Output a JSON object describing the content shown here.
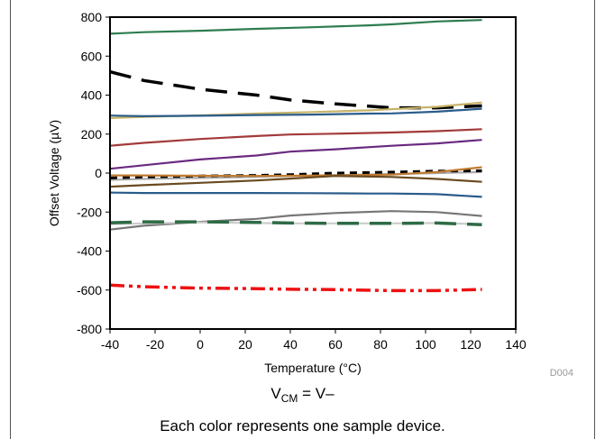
{
  "chart_data": {
    "type": "line",
    "xlabel": "Temperature (°C)",
    "ylabel": "Offset Voltage (µV)",
    "xlim": [
      -40,
      140
    ],
    "ylim": [
      -800,
      800
    ],
    "xticks": [
      "-40",
      "-20",
      "0",
      "20",
      "40",
      "60",
      "80",
      "100",
      "120",
      "140"
    ],
    "yticks": [
      "800",
      "600",
      "400",
      "200",
      "0",
      "-200",
      "-400",
      "-600",
      "-800"
    ],
    "grid": false,
    "legend": "none",
    "figure_id": "D004",
    "series": [
      {
        "color": "#2e7d4f",
        "dash": "solid",
        "x": [
          -40,
          -25,
          0,
          25,
          50,
          75,
          85,
          105,
          125
        ],
        "y": [
          715,
          723,
          730,
          740,
          748,
          758,
          763,
          778,
          785
        ]
      },
      {
        "color": "#000000",
        "dash": "long",
        "x": [
          -40,
          -25,
          0,
          25,
          40,
          60,
          85,
          105,
          125
        ],
        "y": [
          520,
          475,
          430,
          400,
          375,
          355,
          335,
          335,
          345
        ]
      },
      {
        "color": "#c8b46a",
        "dash": "solid",
        "x": [
          -40,
          -25,
          0,
          25,
          50,
          75,
          85,
          105,
          125
        ],
        "y": [
          282,
          288,
          296,
          305,
          313,
          322,
          328,
          340,
          362
        ]
      },
      {
        "color": "#2a5c8a",
        "dash": "solid",
        "x": [
          -40,
          -25,
          0,
          25,
          50,
          75,
          85,
          105,
          125
        ],
        "y": [
          295,
          292,
          294,
          298,
          300,
          305,
          306,
          315,
          330
        ]
      },
      {
        "color": "#a33a3a",
        "dash": "solid",
        "x": [
          -40,
          -25,
          0,
          25,
          40,
          60,
          85,
          105,
          125
        ],
        "y": [
          140,
          155,
          175,
          190,
          198,
          202,
          208,
          215,
          225
        ]
      },
      {
        "color": "#6a2a80",
        "dash": "solid",
        "x": [
          -40,
          -25,
          0,
          25,
          40,
          60,
          85,
          105,
          125
        ],
        "y": [
          22,
          40,
          70,
          90,
          110,
          122,
          140,
          152,
          170
        ]
      },
      {
        "color": "#aaaaaa",
        "dash": "solid",
        "x": [
          -40,
          -25,
          0,
          25,
          40,
          60,
          85,
          105,
          125
        ],
        "y": [
          -35,
          -30,
          -25,
          -20,
          -15,
          -10,
          -5,
          0,
          5
        ]
      },
      {
        "color": "#000000",
        "dash": "short",
        "x": [
          -40,
          -25,
          0,
          25,
          40,
          60,
          85,
          105,
          125
        ],
        "y": [
          -25,
          -20,
          -15,
          -12,
          -8,
          0,
          5,
          10,
          12
        ]
      },
      {
        "color": "#c07a30",
        "dash": "solid",
        "x": [
          -40,
          -25,
          0,
          25,
          40,
          60,
          85,
          105,
          125
        ],
        "y": [
          -12,
          -12,
          -14,
          -15,
          -14,
          -12,
          -8,
          5,
          30
        ]
      },
      {
        "color": "#6a4a20",
        "dash": "solid",
        "x": [
          -40,
          -25,
          0,
          25,
          40,
          60,
          85,
          105,
          125
        ],
        "y": [
          -70,
          -62,
          -50,
          -38,
          -28,
          -15,
          -20,
          -30,
          -45
        ]
      },
      {
        "color": "#2a5c8a",
        "dash": "solid",
        "x": [
          -40,
          -25,
          0,
          25,
          50,
          75,
          85,
          105,
          125
        ],
        "y": [
          -100,
          -102,
          -102,
          -102,
          -103,
          -105,
          -105,
          -108,
          -122
        ]
      },
      {
        "color": "#777777",
        "dash": "solid",
        "x": [
          -40,
          -25,
          0,
          25,
          40,
          60,
          85,
          105,
          125
        ],
        "y": [
          -290,
          -270,
          -250,
          -235,
          -218,
          -205,
          -195,
          -200,
          -220
        ]
      },
      {
        "color": "#cccccc",
        "dash": "solid",
        "x": [
          -40,
          -25,
          0,
          25,
          40,
          60,
          85,
          105,
          125
        ],
        "y": [
          -262,
          -258,
          -253,
          -256,
          -258,
          -258,
          -258,
          -256,
          -262
        ]
      },
      {
        "color": "#2e6b45",
        "dash": "long",
        "x": [
          -40,
          -25,
          0,
          25,
          40,
          60,
          85,
          105,
          125
        ],
        "y": [
          -255,
          -250,
          -250,
          -253,
          -256,
          -258,
          -258,
          -256,
          -265
        ]
      },
      {
        "color": "#ee1111",
        "dash": "dashdotdot",
        "x": [
          -40,
          -25,
          0,
          25,
          40,
          60,
          85,
          105,
          125
        ],
        "y": [
          -575,
          -583,
          -590,
          -593,
          -596,
          -598,
          -603,
          -603,
          -597
        ]
      }
    ]
  },
  "caption": {
    "vcm_main": "V",
    "vcm_sub": "CM",
    "vcm_rest": " = V–",
    "note": "Each color represents one sample device."
  }
}
